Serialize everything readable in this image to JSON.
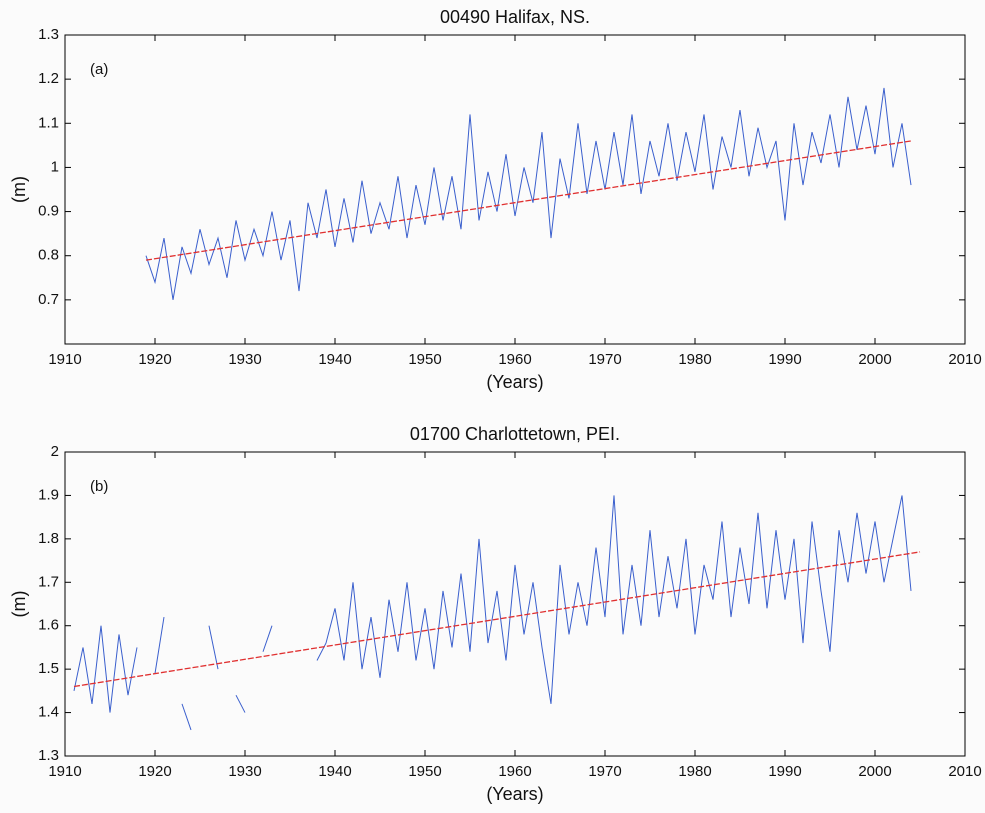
{
  "chart_data": [
    {
      "type": "line",
      "title": "00490 Halifax, NS.",
      "panel_label": "(a)",
      "xlabel": "(Years)",
      "ylabel": "(m)",
      "xlim": [
        1910,
        2010
      ],
      "xticks": [
        1910,
        1920,
        1930,
        1940,
        1950,
        1960,
        1970,
        1980,
        1990,
        2000,
        2010
      ],
      "ylim": [
        0.6,
        1.3
      ],
      "yticks": [
        0.7,
        0.8,
        0.9,
        1,
        1.1,
        1.2,
        1.3
      ],
      "series": [
        {
          "color": "#3a5fcd",
          "x": [
            1919,
            1920,
            1921,
            1922,
            1923,
            1924,
            1925,
            1926,
            1927,
            1928,
            1929,
            1930,
            1931,
            1932,
            1933,
            1934,
            1935,
            1936,
            1937,
            1938,
            1939,
            1940,
            1941,
            1942,
            1943,
            1944,
            1945,
            1946,
            1947,
            1948,
            1949,
            1950,
            1951,
            1952,
            1953,
            1954,
            1955,
            1956,
            1957,
            1958,
            1959,
            1960,
            1961,
            1962,
            1963,
            1964,
            1965,
            1966,
            1967,
            1968,
            1969,
            1970,
            1971,
            1972,
            1973,
            1974,
            1975,
            1976,
            1977,
            1978,
            1979,
            1980,
            1981,
            1982,
            1983,
            1984,
            1985,
            1986,
            1987,
            1988,
            1989,
            1990,
            1991,
            1992,
            1993,
            1994,
            1995,
            1996,
            1997,
            1998,
            1999,
            2000,
            2001,
            2002,
            2003,
            2004
          ],
          "values": [
            0.8,
            0.74,
            0.84,
            0.7,
            0.82,
            0.76,
            0.86,
            0.78,
            0.84,
            0.75,
            0.88,
            0.79,
            0.86,
            0.8,
            0.9,
            0.79,
            0.88,
            0.72,
            0.92,
            0.84,
            0.95,
            0.82,
            0.93,
            0.83,
            0.97,
            0.85,
            0.92,
            0.86,
            0.98,
            0.84,
            0.96,
            0.87,
            1.0,
            0.88,
            0.98,
            0.86,
            1.12,
            0.88,
            0.99,
            0.9,
            1.03,
            0.89,
            1.0,
            0.92,
            1.08,
            0.84,
            1.02,
            0.93,
            1.1,
            0.94,
            1.06,
            0.95,
            1.08,
            0.96,
            1.12,
            0.94,
            1.06,
            0.98,
            1.1,
            0.97,
            1.08,
            0.99,
            1.12,
            0.95,
            1.07,
            1.0,
            1.13,
            0.98,
            1.09,
            1.0,
            1.06,
            0.88,
            1.1,
            0.96,
            1.08,
            1.01,
            1.12,
            1.0,
            1.16,
            1.04,
            1.14,
            1.03,
            1.18,
            1.0,
            1.1,
            0.96
          ]
        },
        {
          "color": "#e03030",
          "x": [
            1919,
            2004
          ],
          "values": [
            0.79,
            1.06
          ]
        }
      ]
    },
    {
      "type": "line",
      "title": "01700 Charlottetown, PEI.",
      "panel_label": "(b)",
      "xlabel": "(Years)",
      "ylabel": "(m)",
      "xlim": [
        1910,
        2010
      ],
      "xticks": [
        1910,
        1920,
        1930,
        1940,
        1950,
        1960,
        1970,
        1980,
        1990,
        2000,
        2010
      ],
      "ylim": [
        1.3,
        2
      ],
      "yticks": [
        1.3,
        1.4,
        1.5,
        1.6,
        1.7,
        1.8,
        1.9,
        2
      ],
      "series": [
        {
          "color": "#3a5fcd",
          "x": [
            1911,
            1912,
            1913,
            1914,
            1915,
            1916,
            1917,
            1918,
            1919,
            1920,
            1921,
            1922,
            1923,
            1924,
            1925,
            1926,
            1927,
            1928,
            1929,
            1930,
            1931,
            1932,
            1933,
            1934,
            1935,
            1936,
            1937,
            1938,
            1939,
            1940,
            1941,
            1942,
            1943,
            1944,
            1945,
            1946,
            1947,
            1948,
            1949,
            1950,
            1951,
            1952,
            1953,
            1954,
            1955,
            1956,
            1957,
            1958,
            1959,
            1960,
            1961,
            1962,
            1963,
            1964,
            1965,
            1966,
            1967,
            1968,
            1969,
            1970,
            1971,
            1972,
            1973,
            1974,
            1975,
            1976,
            1977,
            1978,
            1979,
            1980,
            1981,
            1982,
            1983,
            1984,
            1985,
            1986,
            1987,
            1988,
            1989,
            1990,
            1991,
            1992,
            1993,
            1994,
            1995,
            1996,
            1997,
            1998,
            1999,
            2000,
            2001,
            2002,
            2003,
            2004
          ],
          "values": [
            1.45,
            1.55,
            1.42,
            1.6,
            1.4,
            1.58,
            1.44,
            1.55,
            null,
            1.49,
            1.62,
            null,
            1.42,
            1.36,
            null,
            1.6,
            1.5,
            null,
            1.44,
            1.4,
            null,
            1.54,
            1.6,
            null,
            null,
            null,
            null,
            1.52,
            1.56,
            1.64,
            1.52,
            1.7,
            1.5,
            1.62,
            1.48,
            1.66,
            1.54,
            1.7,
            1.52,
            1.64,
            1.5,
            1.68,
            1.55,
            1.72,
            1.54,
            1.8,
            1.56,
            1.68,
            1.52,
            1.74,
            1.58,
            1.7,
            1.55,
            1.42,
            1.74,
            1.58,
            1.7,
            1.6,
            1.78,
            1.62,
            1.9,
            1.58,
            1.74,
            1.6,
            1.82,
            1.62,
            1.76,
            1.64,
            1.8,
            1.58,
            1.74,
            1.66,
            1.84,
            1.62,
            1.78,
            1.65,
            1.86,
            1.64,
            1.82,
            1.66,
            1.8,
            1.56,
            1.84,
            1.68,
            1.54,
            1.82,
            1.7,
            1.86,
            1.72,
            1.84,
            1.7,
            1.8,
            1.9,
            1.68
          ]
        },
        {
          "color": "#e03030",
          "x": [
            1911,
            2005
          ],
          "values": [
            1.46,
            1.77
          ]
        }
      ]
    }
  ]
}
